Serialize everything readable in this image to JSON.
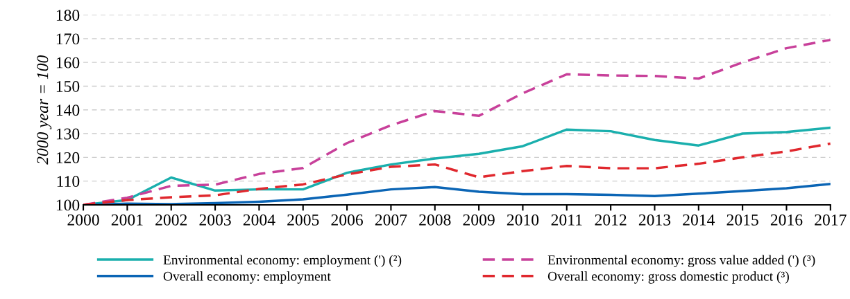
{
  "chart_data": {
    "type": "line",
    "ylabel": "2000 year = 100",
    "x": [
      2000,
      2001,
      2002,
      2003,
      2004,
      2005,
      2006,
      2007,
      2008,
      2009,
      2010,
      2011,
      2012,
      2013,
      2014,
      2015,
      2016,
      2017
    ],
    "xlim": [
      2000,
      2017
    ],
    "xticks": [
      2000,
      2001,
      2002,
      2003,
      2004,
      2005,
      2006,
      2007,
      2008,
      2009,
      2010,
      2011,
      2012,
      2013,
      2014,
      2015,
      2016,
      2017
    ],
    "ylim": [
      100,
      180
    ],
    "yticks": [
      100,
      110,
      120,
      130,
      140,
      150,
      160,
      170,
      180
    ],
    "grid": "y",
    "legend": "bottom",
    "marker": "none",
    "series": [
      {
        "name": "Environmental economy: employment (') (²)",
        "color": "#1aafad",
        "line_style": "solid",
        "values": [
          100,
          102,
          111.5,
          106,
          106.5,
          106.5,
          113.5,
          117,
          119.5,
          121.5,
          124.7,
          131.7,
          131,
          127.3,
          125,
          130,
          130.7,
          132.5
        ]
      },
      {
        "name": "Overall economy: employment",
        "color": "#0b65b5",
        "line_style": "solid",
        "values": [
          100,
          100.5,
          100.3,
          100.7,
          101.3,
          102.3,
          104.3,
          106.5,
          107.5,
          105.5,
          104.5,
          104.5,
          104.2,
          103.7,
          104.7,
          105.8,
          107,
          108.8
        ]
      },
      {
        "name": "Environmental economy: gross value added (') (³)",
        "color": "#c8409a",
        "line_style": "dashed",
        "values": [
          100,
          103,
          108,
          108.5,
          113,
          115.5,
          126,
          133.5,
          139.5,
          137.5,
          147,
          155,
          154.5,
          154.3,
          153.2,
          160,
          166,
          169.5
        ]
      },
      {
        "name": "Overall economy: gross domestic product (³)",
        "color": "#e0282e",
        "line_style": "dashed",
        "values": [
          100,
          102,
          103.2,
          104,
          106.7,
          108.6,
          112.8,
          116,
          117,
          111.6,
          114.2,
          116.4,
          115.4,
          115.4,
          117.3,
          120,
          122.5,
          125.8
        ]
      }
    ]
  }
}
